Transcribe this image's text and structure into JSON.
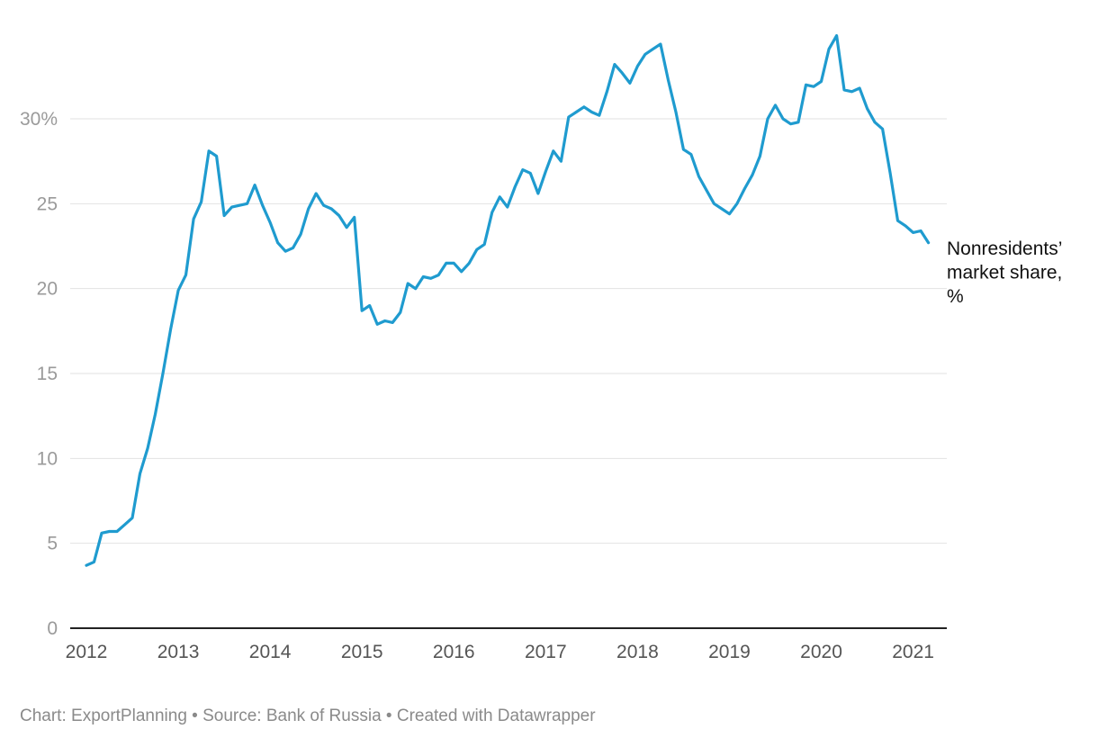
{
  "chart_data": {
    "type": "line",
    "ylim": [
      0,
      35
    ],
    "y_ticks": [
      {
        "value": 0,
        "label": "0"
      },
      {
        "value": 5,
        "label": "5"
      },
      {
        "value": 10,
        "label": "10"
      },
      {
        "value": 15,
        "label": "15"
      },
      {
        "value": 20,
        "label": "20"
      },
      {
        "value": 25,
        "label": "25"
      },
      {
        "value": 30,
        "label": "30%"
      }
    ],
    "x_ticks": [
      {
        "value": 2012,
        "label": "2012"
      },
      {
        "value": 2013,
        "label": "2013"
      },
      {
        "value": 2014,
        "label": "2014"
      },
      {
        "value": 2015,
        "label": "2015"
      },
      {
        "value": 2016,
        "label": "2016"
      },
      {
        "value": 2017,
        "label": "2017"
      },
      {
        "value": 2018,
        "label": "2018"
      },
      {
        "value": 2019,
        "label": "2019"
      },
      {
        "value": 2020,
        "label": "2020"
      },
      {
        "value": 2021,
        "label": "2021"
      }
    ],
    "grid": true,
    "series": [
      {
        "name_lines": [
          "Nonresidents’",
          "market share,",
          "%"
        ],
        "color": "#1f9bcf",
        "points": [
          [
            2012.0,
            3.7
          ],
          [
            2012.083,
            3.9
          ],
          [
            2012.167,
            5.6
          ],
          [
            2012.25,
            5.7
          ],
          [
            2012.333,
            5.7
          ],
          [
            2012.417,
            6.1
          ],
          [
            2012.5,
            6.5
          ],
          [
            2012.583,
            9.1
          ],
          [
            2012.667,
            10.6
          ],
          [
            2012.75,
            12.6
          ],
          [
            2012.833,
            15.0
          ],
          [
            2012.917,
            17.6
          ],
          [
            2013.0,
            19.9
          ],
          [
            2013.083,
            20.8
          ],
          [
            2013.167,
            24.1
          ],
          [
            2013.25,
            25.1
          ],
          [
            2013.333,
            28.1
          ],
          [
            2013.417,
            27.8
          ],
          [
            2013.5,
            24.3
          ],
          [
            2013.583,
            24.8
          ],
          [
            2013.667,
            24.9
          ],
          [
            2013.75,
            25.0
          ],
          [
            2013.833,
            26.1
          ],
          [
            2013.917,
            24.9
          ],
          [
            2014.0,
            23.9
          ],
          [
            2014.083,
            22.7
          ],
          [
            2014.167,
            22.2
          ],
          [
            2014.25,
            22.4
          ],
          [
            2014.333,
            23.2
          ],
          [
            2014.417,
            24.7
          ],
          [
            2014.5,
            25.6
          ],
          [
            2014.583,
            24.9
          ],
          [
            2014.667,
            24.7
          ],
          [
            2014.75,
            24.3
          ],
          [
            2014.833,
            23.6
          ],
          [
            2014.917,
            24.2
          ],
          [
            2015.0,
            18.7
          ],
          [
            2015.083,
            19.0
          ],
          [
            2015.167,
            17.9
          ],
          [
            2015.25,
            18.1
          ],
          [
            2015.333,
            18.0
          ],
          [
            2015.417,
            18.6
          ],
          [
            2015.5,
            20.3
          ],
          [
            2015.583,
            20.0
          ],
          [
            2015.667,
            20.7
          ],
          [
            2015.75,
            20.6
          ],
          [
            2015.833,
            20.8
          ],
          [
            2015.917,
            21.5
          ],
          [
            2016.0,
            21.5
          ],
          [
            2016.083,
            21.0
          ],
          [
            2016.167,
            21.5
          ],
          [
            2016.25,
            22.3
          ],
          [
            2016.333,
            22.6
          ],
          [
            2016.417,
            24.5
          ],
          [
            2016.5,
            25.4
          ],
          [
            2016.583,
            24.8
          ],
          [
            2016.667,
            26.0
          ],
          [
            2016.75,
            27.0
          ],
          [
            2016.833,
            26.8
          ],
          [
            2016.917,
            25.6
          ],
          [
            2017.0,
            26.9
          ],
          [
            2017.083,
            28.1
          ],
          [
            2017.167,
            27.5
          ],
          [
            2017.25,
            30.1
          ],
          [
            2017.333,
            30.4
          ],
          [
            2017.417,
            30.7
          ],
          [
            2017.5,
            30.4
          ],
          [
            2017.583,
            30.2
          ],
          [
            2017.667,
            31.6
          ],
          [
            2017.75,
            33.2
          ],
          [
            2017.833,
            32.7
          ],
          [
            2017.917,
            32.1
          ],
          [
            2018.0,
            33.1
          ],
          [
            2018.083,
            33.8
          ],
          [
            2018.167,
            34.1
          ],
          [
            2018.25,
            34.4
          ],
          [
            2018.333,
            32.3
          ],
          [
            2018.417,
            30.4
          ],
          [
            2018.5,
            28.2
          ],
          [
            2018.583,
            27.9
          ],
          [
            2018.667,
            26.6
          ],
          [
            2018.75,
            25.8
          ],
          [
            2018.833,
            25.0
          ],
          [
            2018.917,
            24.7
          ],
          [
            2019.0,
            24.4
          ],
          [
            2019.083,
            25.0
          ],
          [
            2019.167,
            25.9
          ],
          [
            2019.25,
            26.7
          ],
          [
            2019.333,
            27.8
          ],
          [
            2019.417,
            30.0
          ],
          [
            2019.5,
            30.8
          ],
          [
            2019.583,
            30.0
          ],
          [
            2019.667,
            29.7
          ],
          [
            2019.75,
            29.8
          ],
          [
            2019.833,
            32.0
          ],
          [
            2019.917,
            31.9
          ],
          [
            2020.0,
            32.2
          ],
          [
            2020.083,
            34.1
          ],
          [
            2020.167,
            34.9
          ],
          [
            2020.25,
            31.7
          ],
          [
            2020.333,
            31.6
          ],
          [
            2020.417,
            31.8
          ],
          [
            2020.5,
            30.6
          ],
          [
            2020.583,
            29.8
          ],
          [
            2020.667,
            29.4
          ],
          [
            2020.75,
            26.8
          ],
          [
            2020.833,
            24.0
          ],
          [
            2020.917,
            23.7
          ],
          [
            2021.0,
            23.3
          ],
          [
            2021.083,
            23.4
          ],
          [
            2021.167,
            22.7
          ]
        ]
      }
    ]
  },
  "footer": "Chart: ExportPlanning • Source: Bank of Russia • Created with Datawrapper"
}
